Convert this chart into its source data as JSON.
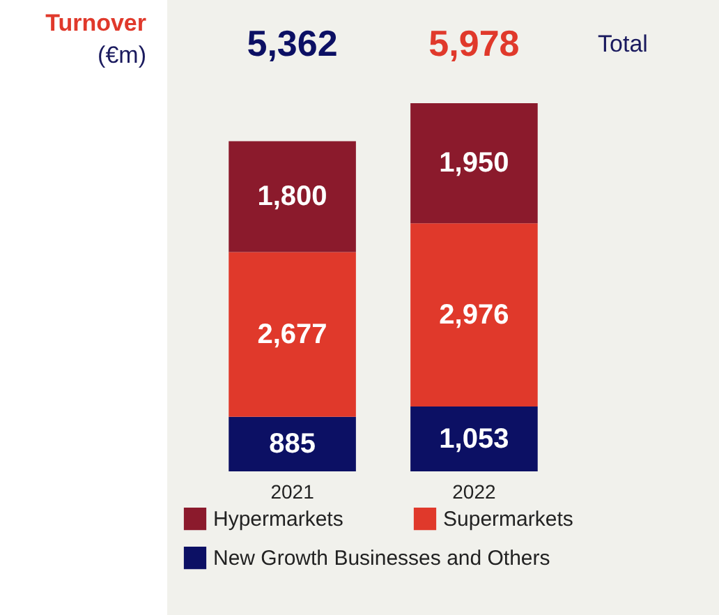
{
  "chart_data": {
    "type": "bar",
    "title": "Turnover",
    "subtitle": "(€m)",
    "categories": [
      "2021",
      "2022"
    ],
    "stacked": true,
    "series": [
      {
        "name": "New Growth Businesses and Others",
        "color": "#0c1064",
        "values": [
          885,
          1053
        ],
        "value_labels": [
          "885",
          "1,053"
        ]
      },
      {
        "name": "Supermarkets",
        "color": "#e0392b",
        "values": [
          2677,
          2976
        ],
        "value_labels": [
          "2,677",
          "2,976"
        ]
      },
      {
        "name": "Hypermarkets",
        "color": "#8b1a2c",
        "values": [
          1800,
          1950
        ],
        "value_labels": [
          "1,800",
          "1,950"
        ]
      }
    ],
    "totals": [
      "5,362",
      "5,978"
    ],
    "annotations": [
      "Total"
    ],
    "legend": "bottom",
    "tick_labels": "x"
  }
}
